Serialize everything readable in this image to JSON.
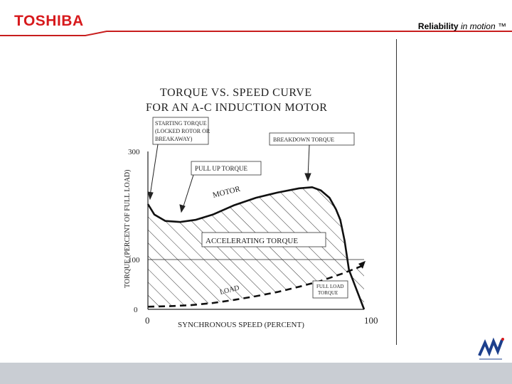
{
  "header": {
    "brand": "TOSHIBA",
    "tagline_strong": "Reliability",
    "tagline_em": "in motion",
    "tagline_tm": "™",
    "brand_color": "#d7191c"
  },
  "chart_data": {
    "type": "line",
    "title_line1": "TORQUE VS. SPEED CURVE",
    "title_line2": "FOR AN A-C INDUCTION MOTOR",
    "xlabel": "SYNCHRONOUS SPEED (PERCENT)",
    "ylabel": "TORQUE (PERCENT OF FULL LOAD)",
    "xlim": [
      0,
      100
    ],
    "ylim": [
      0,
      300
    ],
    "x_ticks": [
      "0",
      "100"
    ],
    "y_ticks": [
      "0",
      "100",
      "300"
    ],
    "grid": false,
    "series": [
      {
        "name": "MOTOR",
        "x": [
          0,
          3,
          8,
          15,
          22,
          30,
          40,
          50,
          60,
          70,
          76,
          80,
          84,
          87,
          89,
          91,
          93,
          100
        ],
        "y": [
          200,
          180,
          168,
          166,
          170,
          180,
          198,
          212,
          222,
          230,
          232,
          226,
          212,
          190,
          170,
          130,
          75,
          0
        ]
      },
      {
        "name": "LOAD",
        "x": [
          0,
          10,
          20,
          30,
          40,
          50,
          60,
          70,
          80,
          90,
          95,
          100
        ],
        "y": [
          5,
          6,
          8,
          12,
          18,
          25,
          33,
          43,
          54,
          68,
          76,
          84
        ]
      }
    ],
    "annotations": {
      "starting_torque": [
        "STARTING TORQUE",
        "(LOCKED ROTOR OR",
        "BREAKAWAY)"
      ],
      "breakdown_torque": "BREAKDOWN TORQUE",
      "pull_up_torque": "PULL UP TORQUE",
      "accelerating_torque": "ACCELERATING TORQUE",
      "full_load_torque": [
        "FULL LOAD",
        "TORQUE"
      ],
      "motor_label": "MOTOR",
      "load_label": "LOAD"
    }
  }
}
